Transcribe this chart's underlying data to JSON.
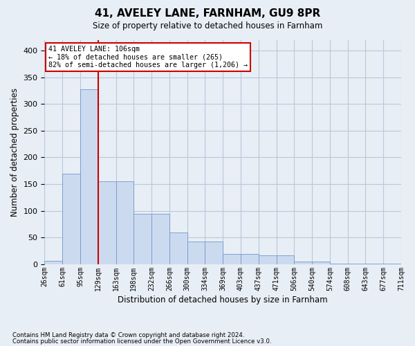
{
  "title1": "41, AVELEY LANE, FARNHAM, GU9 8PR",
  "title2": "Size of property relative to detached houses in Farnham",
  "xlabel": "Distribution of detached houses by size in Farnham",
  "ylabel": "Number of detached properties",
  "footnote1": "Contains HM Land Registry data © Crown copyright and database right 2024.",
  "footnote2": "Contains public sector information licensed under the Open Government Licence v3.0.",
  "annotation_line1": "41 AVELEY LANE: 106sqm",
  "annotation_line2": "← 18% of detached houses are smaller (265)",
  "annotation_line3": "82% of semi-detached houses are larger (1,206) →",
  "bar_values": [
    7,
    170,
    328,
    155,
    155,
    94,
    94,
    60,
    43,
    43,
    20,
    20,
    17,
    17,
    5,
    5,
    1,
    1,
    1,
    1
  ],
  "bin_labels": [
    "26sqm",
    "61sqm",
    "95sqm",
    "129sqm",
    "163sqm",
    "198sqm",
    "232sqm",
    "266sqm",
    "300sqm",
    "334sqm",
    "369sqm",
    "403sqm",
    "437sqm",
    "471sqm",
    "506sqm",
    "540sqm",
    "574sqm",
    "608sqm",
    "643sqm",
    "677sqm",
    "711sqm"
  ],
  "bar_color": "#ccdaf0",
  "bar_edge_color": "#7098c8",
  "grid_color": "#b8c8dc",
  "background_color": "#e8eef5",
  "plot_bg_color": "#e8eef5",
  "vline_color": "#cc0000",
  "annotation_box_color": "#cc0000",
  "ylim": [
    0,
    420
  ],
  "yticks": [
    0,
    50,
    100,
    150,
    200,
    250,
    300,
    350,
    400
  ]
}
